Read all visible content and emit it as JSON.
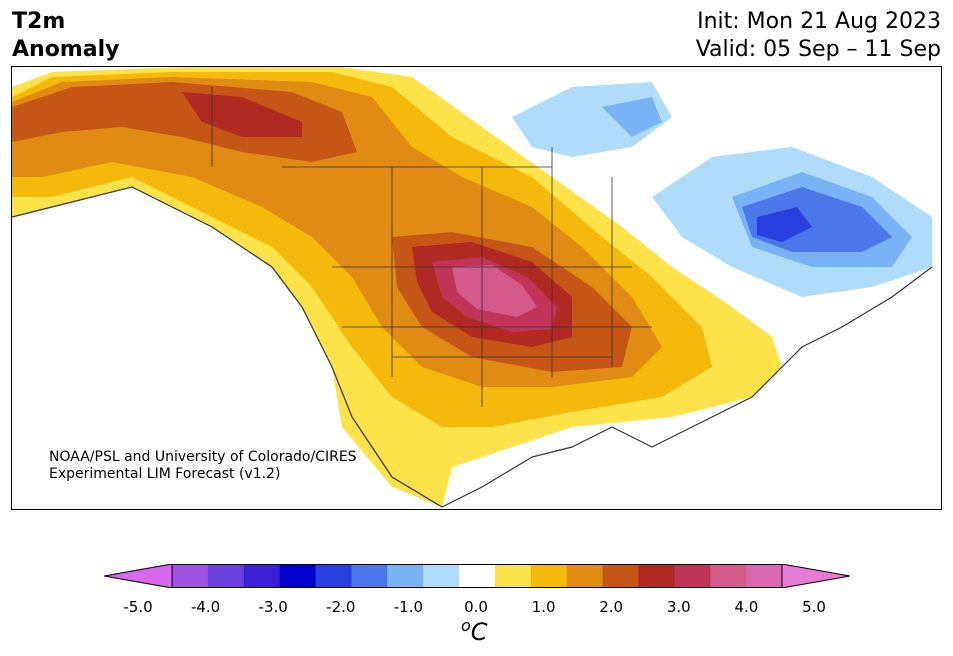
{
  "header": {
    "variable": "T2m",
    "variable_sub": "Anomaly",
    "init": "Init: Mon 21 Aug 2023",
    "valid": "Valid: 05 Sep – 11 Sep"
  },
  "map": {
    "credit_line1": "NOAA/PSL and University of Colorado/CIRES",
    "credit_line2": "Experimental LIM Forecast (v1.2)"
  },
  "colorbar": {
    "ticks": [
      "-5.0",
      "-4.0",
      "-3.0",
      "-2.0",
      "-1.0",
      "0.0",
      "1.0",
      "2.0",
      "3.0",
      "4.0",
      "5.0"
    ],
    "unit_base": "C",
    "unit_super": "o",
    "levels": [
      -5.0,
      -4.5,
      -4.0,
      -3.5,
      -3.0,
      -2.5,
      -2.0,
      -1.5,
      -1.0,
      -0.5,
      0.5,
      1.0,
      1.5,
      2.0,
      2.5,
      3.0,
      3.5,
      4.0,
      4.5,
      5.0
    ],
    "colors": [
      "#d868ec",
      "#a053e0",
      "#6b3fdd",
      "#3a1fd3",
      "#0000cc",
      "#2a3fe0",
      "#4a78e8",
      "#7ab3f5",
      "#b0dcfb",
      "#ffffff",
      "#fde24a",
      "#f4b90a",
      "#e08c14",
      "#c65616",
      "#b02a22",
      "#c0345a",
      "#d45a8a",
      "#d869b0",
      "#e87ad8"
    ]
  }
}
